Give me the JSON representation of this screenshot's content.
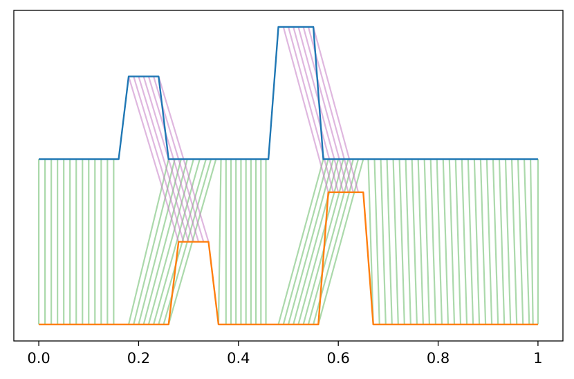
{
  "chart_data": {
    "type": "line",
    "title": "",
    "xlabel": "",
    "ylabel": "",
    "xlim": [
      -0.05,
      1.05
    ],
    "ylim": [
      -0.1,
      1.9
    ],
    "grid": false,
    "legend": "none",
    "x_ticks": [
      0.0,
      0.2,
      0.4,
      0.6,
      0.8,
      1.0
    ],
    "x_tick_labels": [
      "0.0",
      "0.2",
      "0.4",
      "0.6",
      "0.8",
      1.0
    ],
    "y_ticks": [],
    "series": [
      {
        "color": "#1f77b4",
        "x": [
          0.0,
          0.16,
          0.18,
          0.24,
          0.26,
          0.46,
          0.48,
          0.55,
          0.57,
          1.0
        ],
        "y": [
          1.0,
          1.0,
          1.5,
          1.5,
          1.0,
          1.0,
          1.8,
          1.8,
          1.0,
          1.0
        ]
      },
      {
        "color": "#ff7f0e",
        "x": [
          0.0,
          0.26,
          0.28,
          0.34,
          0.36,
          0.56,
          0.58,
          0.65,
          0.67,
          1.0
        ],
        "y": [
          0.0,
          0.0,
          0.5,
          0.5,
          0.0,
          0.0,
          0.8,
          0.8,
          0.0,
          0.0
        ]
      }
    ],
    "alignment_top": {
      "color": "#2ca02c",
      "x_top": [
        0.0,
        0.0125,
        0.025,
        0.0375,
        0.05,
        0.0625,
        0.075,
        0.0875,
        0.1,
        0.1125,
        0.125,
        0.1375,
        0.15,
        0.26,
        0.2725,
        0.285,
        0.2975,
        0.31,
        0.3225,
        0.335,
        0.345,
        0.355,
        0.365,
        0.375,
        0.385,
        0.395,
        0.405,
        0.415,
        0.425,
        0.435,
        0.445,
        0.455,
        0.57,
        0.58,
        0.59,
        0.6,
        0.61,
        0.62,
        0.63,
        0.64,
        0.65,
        0.66,
        0.6725,
        0.685,
        0.6975,
        0.71,
        0.7225,
        0.735,
        0.7475,
        0.76,
        0.7725,
        0.785,
        0.7975,
        0.81,
        0.8225,
        0.835,
        0.8475,
        0.86,
        0.8725,
        0.885,
        0.8975,
        0.91,
        0.9225,
        0.935,
        0.9475,
        0.96,
        0.9725,
        0.985,
        1.0
      ],
      "x_bottom": [
        0.0,
        0.0125,
        0.025,
        0.0375,
        0.05,
        0.0625,
        0.075,
        0.0875,
        0.1,
        0.1125,
        0.125,
        0.1375,
        0.15,
        0.18,
        0.19,
        0.2,
        0.21,
        0.22,
        0.23,
        0.24,
        0.25,
        0.26,
        0.36,
        0.375,
        0.385,
        0.395,
        0.405,
        0.415,
        0.425,
        0.435,
        0.445,
        0.455,
        0.48,
        0.49,
        0.5,
        0.51,
        0.52,
        0.53,
        0.54,
        0.55,
        0.56,
        0.67,
        0.6825,
        0.695,
        0.7075,
        0.72,
        0.7325,
        0.745,
        0.7575,
        0.77,
        0.7825,
        0.795,
        0.8075,
        0.82,
        0.8325,
        0.845,
        0.8575,
        0.87,
        0.8825,
        0.895,
        0.9075,
        0.92,
        0.9325,
        0.945,
        0.9575,
        0.97,
        0.9825,
        0.99,
        1.0
      ]
    },
    "alignment_peak_1": {
      "color": "#c47cc4",
      "x_top": [
        0.18,
        0.19,
        0.2,
        0.21,
        0.22,
        0.23,
        0.24
      ],
      "x_bottom": [
        0.28,
        0.29,
        0.3,
        0.31,
        0.32,
        0.33,
        0.34
      ]
    },
    "alignment_peak_2": {
      "color": "#c47cc4",
      "x_top": [
        0.49,
        0.5,
        0.51,
        0.52,
        0.53,
        0.54,
        0.55
      ],
      "x_bottom": [
        0.58,
        0.59,
        0.6,
        0.61,
        0.62,
        0.63,
        0.64
      ]
    }
  }
}
